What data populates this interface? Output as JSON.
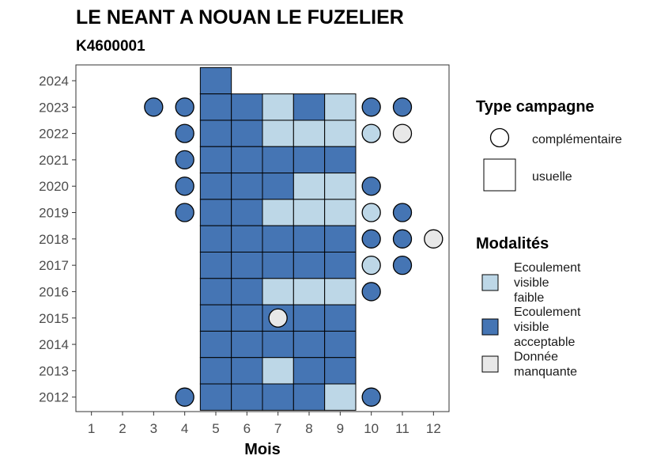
{
  "chart_data": {
    "type": "heatmap",
    "title": "LE NEANT A NOUAN LE FUZELIER",
    "subtitle": "K4600001",
    "xlabel": "Mois",
    "ylabel": "",
    "x_ticks": [
      "1",
      "2",
      "3",
      "4",
      "5",
      "6",
      "7",
      "8",
      "9",
      "10",
      "11",
      "12"
    ],
    "y_ticks": [
      "2012",
      "2013",
      "2014",
      "2015",
      "2016",
      "2017",
      "2018",
      "2019",
      "2020",
      "2021",
      "2022",
      "2023",
      "2024"
    ],
    "xlim": [
      0.5,
      12.5
    ],
    "ylim": [
      2011.45,
      2024.6
    ],
    "colors": {
      "Ecoulement visible faible": "#bdd7e7",
      "Ecoulement visible acceptable": "#4575b4",
      "Donnée manquante": "#e8e8e8"
    },
    "legend": {
      "shape_title": "Type campagne",
      "shape_items": [
        {
          "shape": "circle",
          "label": "complémentaire"
        },
        {
          "shape": "square",
          "label": "usuelle"
        }
      ],
      "color_title": "Modalités",
      "color_items": [
        {
          "key": "Ecoulement visible faible",
          "lines": [
            "Ecoulement",
            "visible",
            "faible"
          ]
        },
        {
          "key": "Ecoulement visible acceptable",
          "lines": [
            "Ecoulement",
            "visible",
            "acceptable"
          ]
        },
        {
          "key": "Donnée manquante",
          "lines": [
            "Donnée",
            "manquante"
          ]
        }
      ],
      "placement": "right"
    },
    "observations": [
      {
        "year": 2024,
        "month": 5,
        "type": "usuelle",
        "value": "Ecoulement visible acceptable"
      },
      {
        "year": 2023,
        "month": 3,
        "type": "complémentaire",
        "value": "Ecoulement visible acceptable"
      },
      {
        "year": 2023,
        "month": 4,
        "type": "complémentaire",
        "value": "Ecoulement visible acceptable"
      },
      {
        "year": 2023,
        "month": 5,
        "type": "usuelle",
        "value": "Ecoulement visible acceptable"
      },
      {
        "year": 2023,
        "month": 6,
        "type": "usuelle",
        "value": "Ecoulement visible acceptable"
      },
      {
        "year": 2023,
        "month": 7,
        "type": "usuelle",
        "value": "Ecoulement visible faible"
      },
      {
        "year": 2023,
        "month": 8,
        "type": "usuelle",
        "value": "Ecoulement visible acceptable"
      },
      {
        "year": 2023,
        "month": 9,
        "type": "usuelle",
        "value": "Ecoulement visible faible"
      },
      {
        "year": 2023,
        "month": 10,
        "type": "complémentaire",
        "value": "Ecoulement visible acceptable"
      },
      {
        "year": 2023,
        "month": 11,
        "type": "complémentaire",
        "value": "Ecoulement visible acceptable"
      },
      {
        "year": 2022,
        "month": 4,
        "type": "complémentaire",
        "value": "Ecoulement visible acceptable"
      },
      {
        "year": 2022,
        "month": 5,
        "type": "usuelle",
        "value": "Ecoulement visible acceptable"
      },
      {
        "year": 2022,
        "month": 6,
        "type": "usuelle",
        "value": "Ecoulement visible acceptable"
      },
      {
        "year": 2022,
        "month": 7,
        "type": "usuelle",
        "value": "Ecoulement visible faible"
      },
      {
        "year": 2022,
        "month": 8,
        "type": "usuelle",
        "value": "Ecoulement visible faible"
      },
      {
        "year": 2022,
        "month": 9,
        "type": "usuelle",
        "value": "Ecoulement visible faible"
      },
      {
        "year": 2022,
        "month": 10,
        "type": "complémentaire",
        "value": "Ecoulement visible faible"
      },
      {
        "year": 2022,
        "month": 11,
        "type": "complémentaire",
        "value": "Donnée manquante"
      },
      {
        "year": 2021,
        "month": 4,
        "type": "complémentaire",
        "value": "Ecoulement visible acceptable"
      },
      {
        "year": 2021,
        "month": 5,
        "type": "usuelle",
        "value": "Ecoulement visible acceptable"
      },
      {
        "year": 2021,
        "month": 6,
        "type": "usuelle",
        "value": "Ecoulement visible acceptable"
      },
      {
        "year": 2021,
        "month": 7,
        "type": "usuelle",
        "value": "Ecoulement visible acceptable"
      },
      {
        "year": 2021,
        "month": 8,
        "type": "usuelle",
        "value": "Ecoulement visible acceptable"
      },
      {
        "year": 2021,
        "month": 9,
        "type": "usuelle",
        "value": "Ecoulement visible acceptable"
      },
      {
        "year": 2020,
        "month": 4,
        "type": "complémentaire",
        "value": "Ecoulement visible acceptable"
      },
      {
        "year": 2020,
        "month": 5,
        "type": "usuelle",
        "value": "Ecoulement visible acceptable"
      },
      {
        "year": 2020,
        "month": 6,
        "type": "usuelle",
        "value": "Ecoulement visible acceptable"
      },
      {
        "year": 2020,
        "month": 7,
        "type": "usuelle",
        "value": "Ecoulement visible acceptable"
      },
      {
        "year": 2020,
        "month": 8,
        "type": "usuelle",
        "value": "Ecoulement visible faible"
      },
      {
        "year": 2020,
        "month": 9,
        "type": "usuelle",
        "value": "Ecoulement visible faible"
      },
      {
        "year": 2020,
        "month": 10,
        "type": "complémentaire",
        "value": "Ecoulement visible acceptable"
      },
      {
        "year": 2019,
        "month": 4,
        "type": "complémentaire",
        "value": "Ecoulement visible acceptable"
      },
      {
        "year": 2019,
        "month": 5,
        "type": "usuelle",
        "value": "Ecoulement visible acceptable"
      },
      {
        "year": 2019,
        "month": 6,
        "type": "usuelle",
        "value": "Ecoulement visible acceptable"
      },
      {
        "year": 2019,
        "month": 7,
        "type": "usuelle",
        "value": "Ecoulement visible faible"
      },
      {
        "year": 2019,
        "month": 8,
        "type": "usuelle",
        "value": "Ecoulement visible faible"
      },
      {
        "year": 2019,
        "month": 9,
        "type": "usuelle",
        "value": "Ecoulement visible faible"
      },
      {
        "year": 2019,
        "month": 10,
        "type": "complémentaire",
        "value": "Ecoulement visible faible"
      },
      {
        "year": 2019,
        "month": 11,
        "type": "complémentaire",
        "value": "Ecoulement visible acceptable"
      },
      {
        "year": 2018,
        "month": 5,
        "type": "usuelle",
        "value": "Ecoulement visible acceptable"
      },
      {
        "year": 2018,
        "month": 6,
        "type": "usuelle",
        "value": "Ecoulement visible acceptable"
      },
      {
        "year": 2018,
        "month": 7,
        "type": "usuelle",
        "value": "Ecoulement visible acceptable"
      },
      {
        "year": 2018,
        "month": 8,
        "type": "usuelle",
        "value": "Ecoulement visible acceptable"
      },
      {
        "year": 2018,
        "month": 9,
        "type": "usuelle",
        "value": "Ecoulement visible acceptable"
      },
      {
        "year": 2018,
        "month": 10,
        "type": "complémentaire",
        "value": "Ecoulement visible acceptable"
      },
      {
        "year": 2018,
        "month": 11,
        "type": "complémentaire",
        "value": "Ecoulement visible acceptable"
      },
      {
        "year": 2018,
        "month": 12,
        "type": "complémentaire",
        "value": "Donnée manquante"
      },
      {
        "year": 2017,
        "month": 5,
        "type": "usuelle",
        "value": "Ecoulement visible acceptable"
      },
      {
        "year": 2017,
        "month": 6,
        "type": "usuelle",
        "value": "Ecoulement visible acceptable"
      },
      {
        "year": 2017,
        "month": 7,
        "type": "usuelle",
        "value": "Ecoulement visible acceptable"
      },
      {
        "year": 2017,
        "month": 8,
        "type": "usuelle",
        "value": "Ecoulement visible acceptable"
      },
      {
        "year": 2017,
        "month": 9,
        "type": "usuelle",
        "value": "Ecoulement visible acceptable"
      },
      {
        "year": 2017,
        "month": 10,
        "type": "complémentaire",
        "value": "Ecoulement visible faible"
      },
      {
        "year": 2017,
        "month": 11,
        "type": "complémentaire",
        "value": "Ecoulement visible acceptable"
      },
      {
        "year": 2016,
        "month": 5,
        "type": "usuelle",
        "value": "Ecoulement visible acceptable"
      },
      {
        "year": 2016,
        "month": 6,
        "type": "usuelle",
        "value": "Ecoulement visible acceptable"
      },
      {
        "year": 2016,
        "month": 7,
        "type": "usuelle",
        "value": "Ecoulement visible faible"
      },
      {
        "year": 2016,
        "month": 8,
        "type": "usuelle",
        "value": "Ecoulement visible faible"
      },
      {
        "year": 2016,
        "month": 9,
        "type": "usuelle",
        "value": "Ecoulement visible faible"
      },
      {
        "year": 2016,
        "month": 10,
        "type": "complémentaire",
        "value": "Ecoulement visible acceptable"
      },
      {
        "year": 2015,
        "month": 5,
        "type": "usuelle",
        "value": "Ecoulement visible acceptable"
      },
      {
        "year": 2015,
        "month": 6,
        "type": "usuelle",
        "value": "Ecoulement visible acceptable"
      },
      {
        "year": 2015,
        "month": 7,
        "type": "usuelle",
        "value": "Ecoulement visible acceptable"
      },
      {
        "year": 2015,
        "month": 7,
        "type": "complémentaire",
        "value": "Donnée manquante"
      },
      {
        "year": 2015,
        "month": 8,
        "type": "usuelle",
        "value": "Ecoulement visible acceptable"
      },
      {
        "year": 2015,
        "month": 9,
        "type": "usuelle",
        "value": "Ecoulement visible acceptable"
      },
      {
        "year": 2014,
        "month": 5,
        "type": "usuelle",
        "value": "Ecoulement visible acceptable"
      },
      {
        "year": 2014,
        "month": 6,
        "type": "usuelle",
        "value": "Ecoulement visible acceptable"
      },
      {
        "year": 2014,
        "month": 7,
        "type": "usuelle",
        "value": "Ecoulement visible acceptable"
      },
      {
        "year": 2014,
        "month": 8,
        "type": "usuelle",
        "value": "Ecoulement visible acceptable"
      },
      {
        "year": 2014,
        "month": 9,
        "type": "usuelle",
        "value": "Ecoulement visible acceptable"
      },
      {
        "year": 2013,
        "month": 5,
        "type": "usuelle",
        "value": "Ecoulement visible acceptable"
      },
      {
        "year": 2013,
        "month": 6,
        "type": "usuelle",
        "value": "Ecoulement visible acceptable"
      },
      {
        "year": 2013,
        "month": 7,
        "type": "usuelle",
        "value": "Ecoulement visible faible"
      },
      {
        "year": 2013,
        "month": 8,
        "type": "usuelle",
        "value": "Ecoulement visible acceptable"
      },
      {
        "year": 2013,
        "month": 9,
        "type": "usuelle",
        "value": "Ecoulement visible acceptable"
      },
      {
        "year": 2012,
        "month": 4,
        "type": "complémentaire",
        "value": "Ecoulement visible acceptable"
      },
      {
        "year": 2012,
        "month": 5,
        "type": "usuelle",
        "value": "Ecoulement visible acceptable"
      },
      {
        "year": 2012,
        "month": 6,
        "type": "usuelle",
        "value": "Ecoulement visible acceptable"
      },
      {
        "year": 2012,
        "month": 7,
        "type": "usuelle",
        "value": "Ecoulement visible acceptable"
      },
      {
        "year": 2012,
        "month": 8,
        "type": "usuelle",
        "value": "Ecoulement visible acceptable"
      },
      {
        "year": 2012,
        "month": 9,
        "type": "usuelle",
        "value": "Ecoulement visible faible"
      },
      {
        "year": 2012,
        "month": 10,
        "type": "complémentaire",
        "value": "Ecoulement visible acceptable"
      }
    ]
  }
}
